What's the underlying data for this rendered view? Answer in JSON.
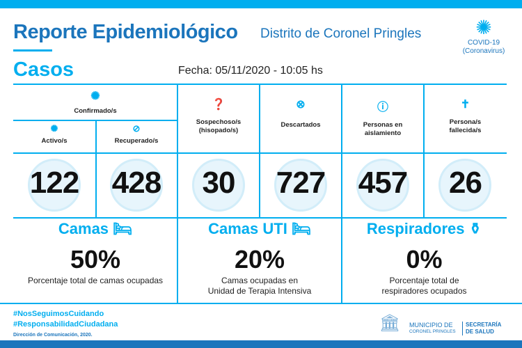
{
  "header": {
    "title": "Reporte Epidemiológico",
    "district": "Distrito de Coronel Pringles",
    "covid_line1": "COVID-19",
    "covid_line2": "(Coronavirus)"
  },
  "casos": {
    "heading": "Casos",
    "fecha": "Fecha: 05/11/2020 - 10:05 hs"
  },
  "cases": {
    "confirmados": {
      "label": "Confirmado/s"
    },
    "activos": {
      "label": "Activo/s",
      "value": "122"
    },
    "recuperados": {
      "label": "Recuperado/s",
      "value": "428"
    },
    "sospechosos": {
      "label1": "Sospechoso/s",
      "label2": "(hisopado/s)",
      "value": "30"
    },
    "descartados": {
      "label": "Descartados",
      "value": "727"
    },
    "aislamiento": {
      "label1": "Personas en",
      "label2": "aislamiento",
      "value": "457"
    },
    "fallecidos": {
      "label1": "Persona/s",
      "label2": "fallecida/s",
      "value": "26"
    }
  },
  "resources": [
    {
      "title": "Camas",
      "value": "50%",
      "desc1": "Porcentaje total de camas ocupadas",
      "desc2": ""
    },
    {
      "title": "Camas UTI",
      "value": "20%",
      "desc1": "Camas ocupadas en",
      "desc2": "Unidad de Terapia Intensiva"
    },
    {
      "title": "Respiradores",
      "value": "0%",
      "desc1": "Porcentaje total de",
      "desc2": "respiradores ocupados"
    }
  ],
  "footer": {
    "tag1": "#NosSeguimosCuidando",
    "tag2": "#ResponsabilidadCiudadana",
    "credit": "Dirección de Comunicación, 2020.",
    "logo1a": "MUNICIPIO DE",
    "logo1b": "CORONEL PRINGLES",
    "logo2a": "SECRETARÍA",
    "logo2b": "DE SALUD"
  },
  "colors": {
    "accent": "#00aeef",
    "title": "#1b75bc"
  }
}
